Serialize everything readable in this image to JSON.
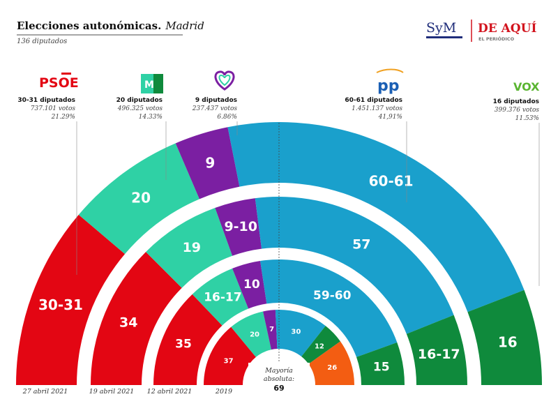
{
  "header": {
    "title": "Elecciones autonómicas.",
    "region": "Madrid",
    "subtitle": "136 diputados"
  },
  "branding": {
    "sym_logo": "SyM",
    "paper_name": "DE AQUÍ",
    "paper_sub": "EL PERIÓDICO"
  },
  "center": {
    "line1": "Mayoría",
    "line2": "absoluta:",
    "value": "69"
  },
  "colors": {
    "psoe": "#e30613",
    "mm": "#2fd1a5",
    "podemos": "#7b1fa2",
    "pp": "#1aa0cc",
    "vox": "#0f8a3c",
    "cs": "#f35d12"
  },
  "parties": [
    {
      "key": "psoe",
      "logo_text": "PSOE",
      "seats": "30-31 diputados",
      "votes": "737.101 votos",
      "pct": "21.29%"
    },
    {
      "key": "mm",
      "logo_text": "M",
      "seats": "20 diputados",
      "votes": "496.325 votos",
      "pct": "14.33%"
    },
    {
      "key": "podemos",
      "logo_text": "",
      "seats": "9 diputados",
      "votes": "237.437 votos",
      "pct": "6.86%"
    },
    {
      "key": "pp",
      "logo_text": "pp",
      "seats": "60-61 diputados",
      "votes": "1.451.137 votos",
      "pct": "41,91%"
    },
    {
      "key": "vox",
      "logo_text": "VOX",
      "seats": "16 diputados",
      "votes": "399.376 votos",
      "pct": "11.53%"
    }
  ],
  "chart_data": {
    "type": "semicircle-parliament",
    "total_seats": 136,
    "rings": [
      {
        "date": "27 abril 2021",
        "segments": [
          {
            "party": "psoe",
            "seats": 30.5,
            "label": "30-31"
          },
          {
            "party": "mm",
            "seats": 20,
            "label": "20"
          },
          {
            "party": "podemos",
            "seats": 9,
            "label": "9"
          },
          {
            "party": "pp",
            "seats": 60.5,
            "label": "60-61"
          },
          {
            "party": "vox",
            "seats": 16,
            "label": "16"
          }
        ]
      },
      {
        "date": "19 abril 2021",
        "segments": [
          {
            "party": "psoe",
            "seats": 34,
            "label": "34"
          },
          {
            "party": "mm",
            "seats": 19,
            "label": "19"
          },
          {
            "party": "podemos",
            "seats": 9.5,
            "label": "9-10"
          },
          {
            "party": "pp",
            "seats": 57,
            "label": "57"
          },
          {
            "party": "vox",
            "seats": 16.5,
            "label": "16-17"
          }
        ]
      },
      {
        "date": "12 abril 2021",
        "segments": [
          {
            "party": "psoe",
            "seats": 35,
            "label": "35"
          },
          {
            "party": "mm",
            "seats": 16.5,
            "label": "16-17"
          },
          {
            "party": "podemos",
            "seats": 10,
            "label": "10"
          },
          {
            "party": "pp",
            "seats": 59.5,
            "label": "59-60"
          },
          {
            "party": "vox",
            "seats": 15,
            "label": "15"
          }
        ]
      },
      {
        "date": "2019",
        "segments": [
          {
            "party": "psoe",
            "seats": 37,
            "label": "37"
          },
          {
            "party": "mm",
            "seats": 20,
            "label": "20"
          },
          {
            "party": "podemos",
            "seats": 7,
            "label": "7"
          },
          {
            "party": "pp",
            "seats": 30,
            "label": "30"
          },
          {
            "party": "vox",
            "seats": 12,
            "label": "12"
          },
          {
            "party": "cs",
            "seats": 26,
            "label": "26"
          }
        ]
      }
    ]
  }
}
